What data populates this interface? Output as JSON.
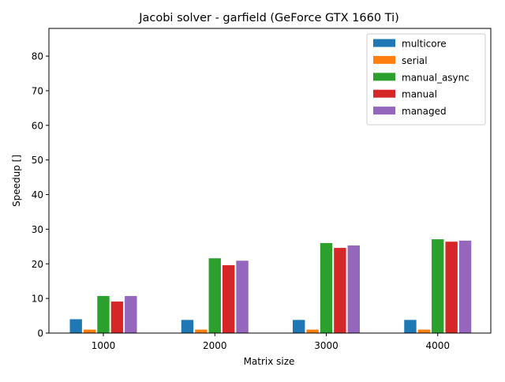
{
  "chart_data": {
    "type": "bar",
    "title": "Jacobi solver - garfield (GeForce GTX 1660 Ti)",
    "xlabel": "Matrix size",
    "ylabel": "Speedup []",
    "categories": [
      "1000",
      "2000",
      "3000",
      "4000"
    ],
    "ylim": [
      0,
      88
    ],
    "yticks": [
      0,
      10,
      20,
      30,
      40,
      50,
      60,
      70,
      80
    ],
    "grid": false,
    "legend": "top-right",
    "series": [
      {
        "name": "multicore",
        "color": "#1f77b4",
        "values": [
          4.0,
          3.8,
          3.8,
          3.8
        ]
      },
      {
        "name": "serial",
        "color": "#ff7f0e",
        "values": [
          1.0,
          1.0,
          1.0,
          1.0
        ]
      },
      {
        "name": "manual_async",
        "color": "#2ca02c",
        "values": [
          10.7,
          21.6,
          26.0,
          27.1
        ]
      },
      {
        "name": "manual",
        "color": "#d62728",
        "values": [
          9.1,
          19.6,
          24.6,
          26.4
        ]
      },
      {
        "name": "managed",
        "color": "#9467bd",
        "values": [
          10.7,
          20.9,
          25.3,
          26.7
        ]
      }
    ]
  }
}
